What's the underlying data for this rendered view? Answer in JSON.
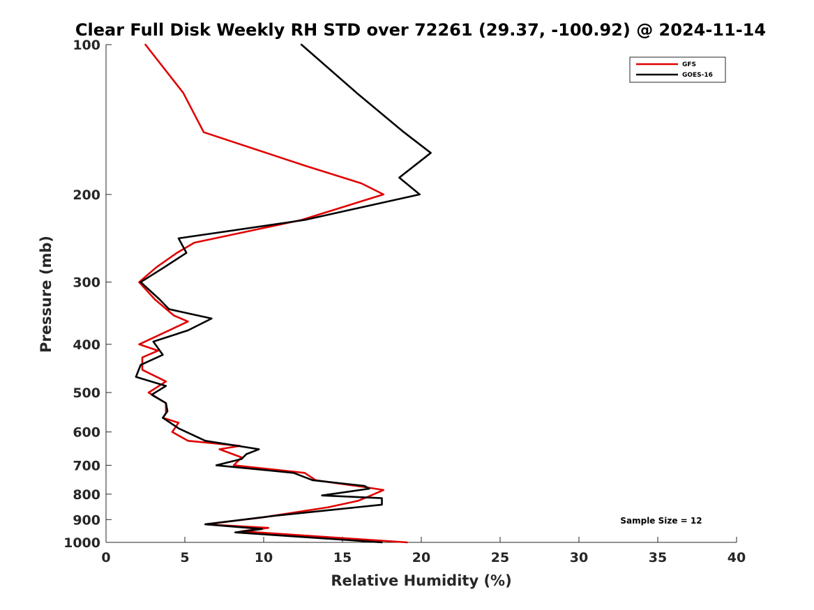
{
  "chart_data": {
    "type": "line",
    "title": "Clear Full Disk Weekly RH STD over 72261 (29.37, -100.92) @ 2024-11-14",
    "xlabel": "Relative Humidity (%)",
    "ylabel": "Pressure (mb)",
    "xlim": [
      0,
      40
    ],
    "ylim": [
      100,
      1000
    ],
    "y_scale": "log",
    "y_reversed": true,
    "x_ticks": [
      0,
      5,
      10,
      15,
      20,
      25,
      30,
      35,
      40
    ],
    "y_ticks": [
      100,
      200,
      300,
      400,
      500,
      600,
      700,
      800,
      900,
      1000
    ],
    "grid": false,
    "legend_position": "top-right",
    "annotation": "Sample Size = 12",
    "series": [
      {
        "name": "GFS",
        "color": "#e00000",
        "points": [
          [
            2.5,
            100
          ],
          [
            4.9,
            125
          ],
          [
            6.2,
            150
          ],
          [
            12.6,
            175
          ],
          [
            16.2,
            190
          ],
          [
            17.6,
            200
          ],
          [
            12.4,
            225
          ],
          [
            5.6,
            250
          ],
          [
            4.5,
            262
          ],
          [
            3.2,
            280
          ],
          [
            2.1,
            300
          ],
          [
            3.1,
            325
          ],
          [
            4.3,
            350
          ],
          [
            5.2,
            360
          ],
          [
            4.0,
            375
          ],
          [
            2.1,
            400
          ],
          [
            3.3,
            412
          ],
          [
            2.3,
            425
          ],
          [
            2.3,
            450
          ],
          [
            3.8,
            475
          ],
          [
            2.7,
            500
          ],
          [
            3.8,
            525
          ],
          [
            3.8,
            550
          ],
          [
            3.6,
            562
          ],
          [
            4.6,
            575
          ],
          [
            4.2,
            600
          ],
          [
            5.2,
            625
          ],
          [
            8.5,
            640
          ],
          [
            7.2,
            650
          ],
          [
            8.6,
            675
          ],
          [
            8.1,
            700
          ],
          [
            12.6,
            725
          ],
          [
            13.3,
            750
          ],
          [
            16.5,
            775
          ],
          [
            17.6,
            785
          ],
          [
            16.6,
            810
          ],
          [
            16.0,
            825
          ],
          [
            14.1,
            850
          ],
          [
            10.0,
            890
          ],
          [
            6.3,
            920
          ],
          [
            10.3,
            935
          ],
          [
            8.6,
            950
          ],
          [
            19.1,
            1000
          ]
        ]
      },
      {
        "name": "GOES-16",
        "color": "#000000",
        "points": [
          [
            12.4,
            100
          ],
          [
            15.9,
            125
          ],
          [
            18.9,
            150
          ],
          [
            20.6,
            165
          ],
          [
            18.6,
            185
          ],
          [
            19.9,
            200
          ],
          [
            12.6,
            225
          ],
          [
            4.6,
            245
          ],
          [
            5.1,
            262
          ],
          [
            3.7,
            280
          ],
          [
            2.2,
            300
          ],
          [
            3.4,
            325
          ],
          [
            4.0,
            340
          ],
          [
            6.7,
            355
          ],
          [
            5.2,
            375
          ],
          [
            3.0,
            395
          ],
          [
            3.6,
            420
          ],
          [
            2.2,
            440
          ],
          [
            1.9,
            465
          ],
          [
            3.8,
            485
          ],
          [
            2.9,
            505
          ],
          [
            3.8,
            525
          ],
          [
            3.9,
            545
          ],
          [
            3.6,
            562
          ],
          [
            4.6,
            590
          ],
          [
            6.3,
            625
          ],
          [
            9.7,
            650
          ],
          [
            8.9,
            665
          ],
          [
            8.6,
            680
          ],
          [
            7.0,
            700
          ],
          [
            11.9,
            725
          ],
          [
            13.1,
            750
          ],
          [
            16.4,
            770
          ],
          [
            16.7,
            780
          ],
          [
            13.7,
            805
          ],
          [
            17.5,
            815
          ],
          [
            17.5,
            840
          ],
          [
            10.6,
            885
          ],
          [
            6.3,
            920
          ],
          [
            9.9,
            940
          ],
          [
            8.2,
            955
          ],
          [
            17.5,
            1000
          ]
        ]
      }
    ]
  }
}
